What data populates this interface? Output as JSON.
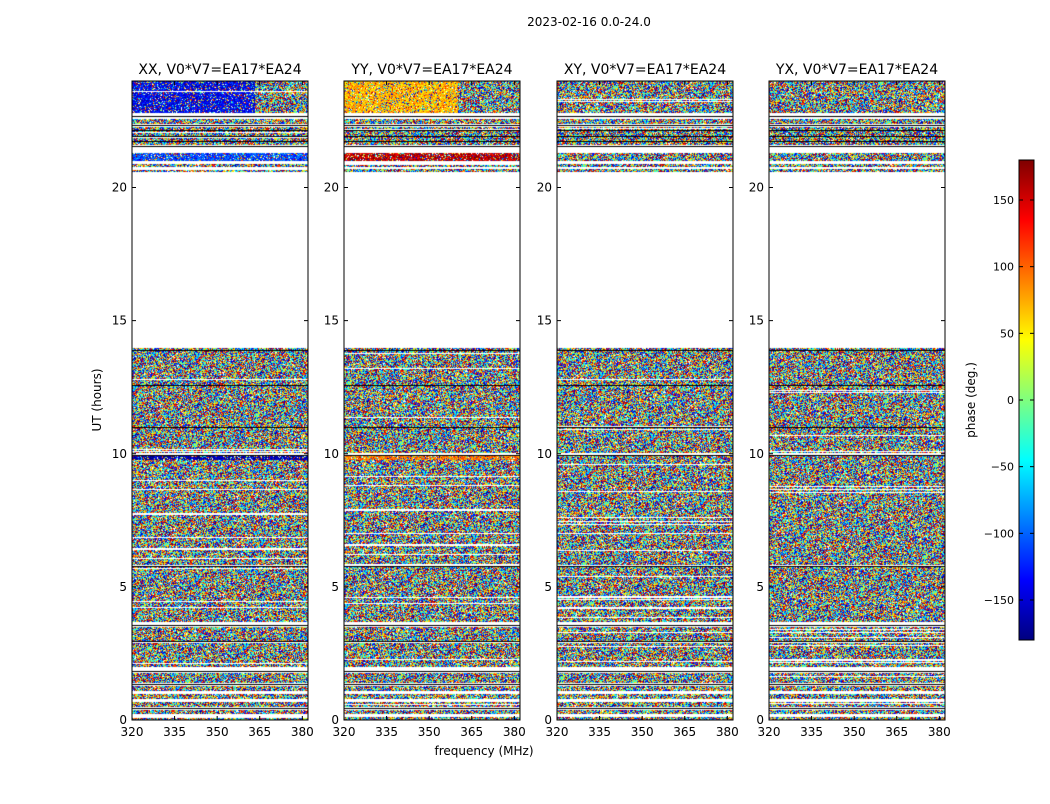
{
  "suptitle": "2023-02-16 0.0-24.0",
  "chart_data": {
    "type": "heatmap",
    "ylabel": "UT (hours)",
    "xlabel": "frequency (MHz)",
    "xlim": [
      320,
      382
    ],
    "ylim": [
      0,
      24
    ],
    "xticks": [
      320,
      335,
      350,
      365,
      380
    ],
    "yticks": [
      0,
      5,
      10,
      15,
      20
    ],
    "panels": [
      {
        "title": "XX, V0*V7=EA17*EA24",
        "polarization": "XX"
      },
      {
        "title": "YY, V0*V7=EA17*EA24",
        "polarization": "YY"
      },
      {
        "title": "XY, V0*V7=EA17*EA24",
        "polarization": "XY"
      },
      {
        "title": "YX, V0*V7=EA17*EA24",
        "polarization": "YX"
      }
    ],
    "data_present_hours": [
      [
        0.0,
        0.15
      ],
      [
        0.25,
        0.4
      ],
      [
        0.5,
        0.7
      ],
      [
        0.8,
        1.0
      ],
      [
        1.1,
        1.3
      ],
      [
        1.4,
        1.8
      ],
      [
        2.0,
        2.9
      ],
      [
        3.0,
        3.5
      ],
      [
        3.7,
        5.75
      ],
      [
        5.85,
        9.95
      ],
      [
        10.05,
        14.0
      ],
      [
        20.6,
        20.7
      ],
      [
        20.8,
        20.9
      ],
      [
        21.0,
        21.3
      ],
      [
        21.6,
        22.3
      ],
      [
        22.4,
        22.6
      ],
      [
        22.8,
        24.0
      ]
    ],
    "coherent_features": [
      {
        "panel": "XX",
        "hours": [
          22.8,
          24.0
        ],
        "freq_mhz": [
          320,
          363
        ],
        "phase_deg": -140
      },
      {
        "panel": "XX",
        "hours": [
          21.0,
          21.3
        ],
        "freq_mhz": [
          320,
          382
        ],
        "phase_deg": -110
      },
      {
        "panel": "XX",
        "hours": [
          9.8,
          9.95
        ],
        "freq_mhz": [
          320,
          382
        ],
        "phase_deg": -165
      },
      {
        "panel": "YY",
        "hours": [
          22.8,
          24.0
        ],
        "freq_mhz": [
          320,
          360
        ],
        "phase_deg": 70
      },
      {
        "panel": "YY",
        "hours": [
          21.0,
          21.3
        ],
        "freq_mhz": [
          320,
          382
        ],
        "phase_deg": 160
      },
      {
        "panel": "YY",
        "hours": [
          9.8,
          9.95
        ],
        "freq_mhz": [
          320,
          382
        ],
        "phase_deg": 90
      }
    ],
    "colorbar": {
      "label": "phase (deg.)",
      "range": [
        -180,
        180
      ],
      "ticks": [
        -150,
        -100,
        -50,
        0,
        50,
        100,
        150
      ],
      "tick_labels": [
        "−150",
        "−100",
        "−50",
        "0",
        "50",
        "100",
        "150"
      ],
      "colormap": "jet"
    }
  }
}
